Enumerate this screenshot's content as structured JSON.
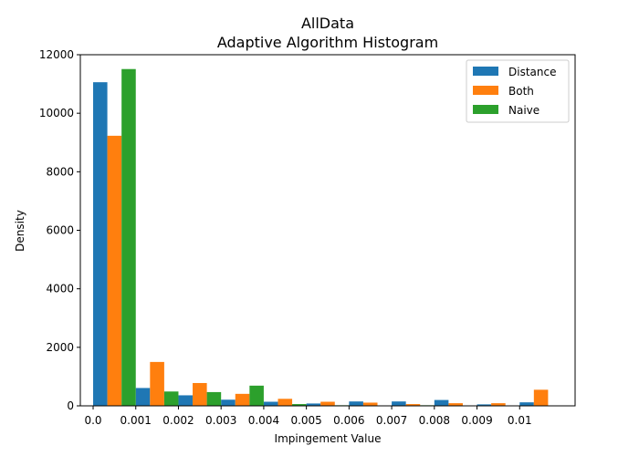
{
  "chart_data": {
    "type": "bar",
    "title": "AllData",
    "subtitle": "Adaptive Algorithm Histogram",
    "xlabel": "Impingement Value",
    "ylabel": "Density",
    "xlim": [
      -0.0003,
      0.0113
    ],
    "ylim": [
      0,
      12000
    ],
    "xticks": [
      0.0,
      0.001,
      0.002,
      0.003,
      0.004,
      0.005,
      0.006,
      0.007,
      0.008,
      0.009,
      0.01
    ],
    "xtick_labels": [
      "0.0",
      "0.001",
      "0.002",
      "0.003",
      "0.004",
      "0.005",
      "0.006",
      "0.007",
      "0.008",
      "0.009",
      "0.01"
    ],
    "yticks": [
      0,
      2000,
      4000,
      6000,
      8000,
      10000,
      12000
    ],
    "ytick_labels": [
      "0",
      "2000",
      "4000",
      "6000",
      "8000",
      "10000",
      "12000"
    ],
    "bin_edges": [
      0.0,
      0.001,
      0.002,
      0.003,
      0.004,
      0.005,
      0.006,
      0.007,
      0.008,
      0.009,
      0.01,
      0.011
    ],
    "grid": false,
    "legend_position": "top-right",
    "series": [
      {
        "name": "Distance",
        "color": "#1f77b4",
        "values": [
          11060,
          610,
          360,
          210,
          140,
          80,
          150,
          150,
          200,
          50,
          120
        ]
      },
      {
        "name": "Both",
        "color": "#ff7f0e",
        "values": [
          9230,
          1500,
          780,
          410,
          240,
          140,
          110,
          60,
          90,
          90,
          550
        ]
      },
      {
        "name": "Naive",
        "color": "#2ca02c",
        "values": [
          11510,
          490,
          470,
          690,
          60,
          20,
          10,
          20,
          0,
          0,
          0
        ]
      }
    ]
  }
}
